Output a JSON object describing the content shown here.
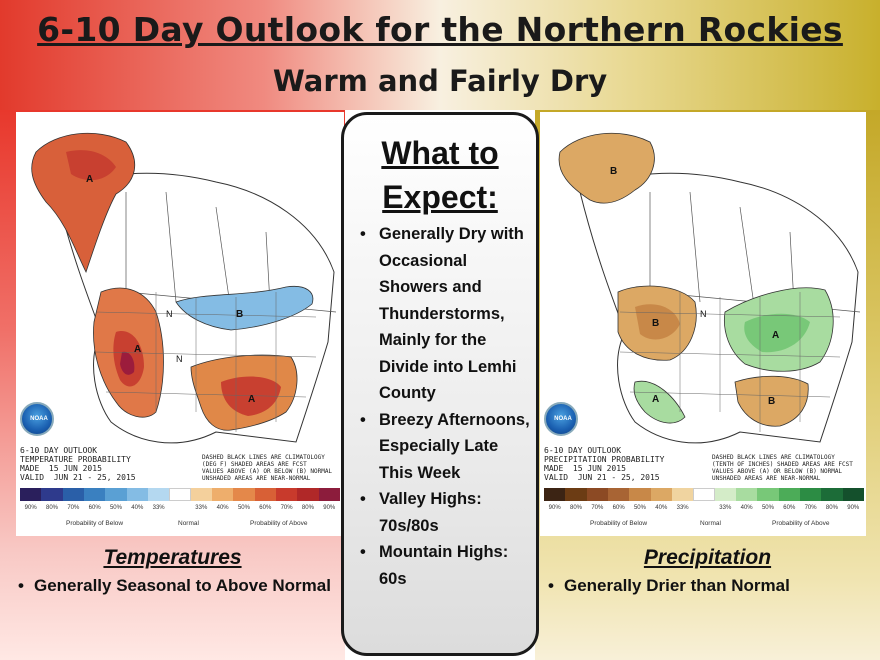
{
  "header": {
    "title": "6-10 Day Outlook for the Northern Rockies",
    "subtitle": "Warm and Fairly Dry"
  },
  "center_panel": {
    "title_line1": "What to",
    "title_line2": "Expect:",
    "bullets": [
      "Generally Dry with Occasional Showers  and Thunderstorms, Mainly for the Divide into Lemhi County",
      "Breezy Afternoons, Especially Late This Week",
      "Valley Highs: 70s/80s",
      "Mountain Highs: 60s"
    ]
  },
  "temperature": {
    "heading": "Temperatures",
    "bullet": "Generally Seasonal to Above Normal",
    "map_label": "6-10 DAY OUTLOOK\nTEMPERATURE PROBABILITY\nMADE  15 JUN 2015\nVALID  JUN 21 - 25, 2015",
    "map_note": "DASHED BLACK LINES ARE CLIMATOLOGY\n(DEG F) SHADED AREAS ARE FCST\nVALUES ABOVE (A) OR BELOW (B) NORMAL\nUNSHADED AREAS ARE NEAR-NORMAL",
    "scale_ticks": [
      "90%",
      "80%",
      "70%",
      "60%",
      "50%",
      "40%",
      "33%",
      "",
      "33%",
      "40%",
      "50%",
      "60%",
      "70%",
      "80%",
      "90%"
    ],
    "scale_below": "Probability of Below",
    "scale_normal": "Normal",
    "scale_above": "Probability of Above",
    "colors": [
      "#2a1f5c",
      "#2e3a8c",
      "#2a5fa8",
      "#3a80c0",
      "#5aa0d4",
      "#84bce4",
      "#b4d8f0",
      "#ffffff",
      "#f4d09c",
      "#eeae6c",
      "#e4884a",
      "#d86036",
      "#c83a2c",
      "#b02828",
      "#8c1c3c"
    ]
  },
  "precipitation": {
    "heading": "Precipitation",
    "bullet": "Generally Drier than Normal",
    "map_label": "6-10 DAY OUTLOOK\nPRECIPITATION PROBABILITY\nMADE  15 JUN 2015\nVALID  JUN 21 - 25, 2015",
    "map_note": "DASHED BLACK LINES ARE CLIMATOLOGY\n(TENTH OF INCHES) SHADED AREAS ARE FCST\nVALUES ABOVE (A) OR BELOW (B) NORMAL\nUNSHADED AREAS ARE NEAR-NORMAL",
    "scale_ticks": [
      "90%",
      "80%",
      "70%",
      "60%",
      "50%",
      "40%",
      "33%",
      "",
      "33%",
      "40%",
      "50%",
      "60%",
      "70%",
      "80%",
      "90%"
    ],
    "scale_below": "Probability of Below",
    "scale_normal": "Normal",
    "scale_above": "Probability of Above",
    "colors": [
      "#3c2414",
      "#6c3c14",
      "#8c4a24",
      "#a86434",
      "#c88848",
      "#dca864",
      "#f0d4a0",
      "#ffffff",
      "#d4ecc8",
      "#a8dca0",
      "#78c878",
      "#4cac58",
      "#2c8c44",
      "#1c6c38",
      "#14502c"
    ]
  }
}
